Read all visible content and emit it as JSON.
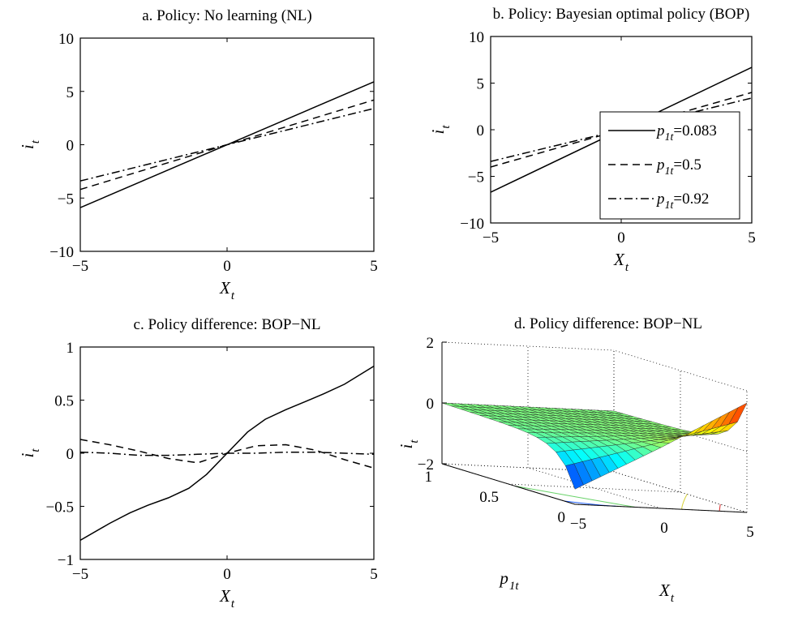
{
  "chart_data": [
    {
      "id": "a",
      "type": "line",
      "title": "a. Policy: No learning (NL)",
      "xlabel": "X",
      "xlabel_sub": "t",
      "ylabel": "i",
      "ylabel_sub": "t",
      "xlim": [
        -5,
        5
      ],
      "ylim": [
        -10,
        10
      ],
      "xticks": [
        -5,
        0,
        5
      ],
      "yticks": [
        -10,
        -5,
        0,
        5,
        10
      ],
      "series": [
        {
          "style": "solid",
          "x": [
            -5,
            5
          ],
          "y": [
            -5.9,
            5.9
          ]
        },
        {
          "style": "dashed",
          "x": [
            -5,
            5
          ],
          "y": [
            -4.2,
            4.2
          ]
        },
        {
          "style": "dashdot",
          "x": [
            -5,
            5
          ],
          "y": [
            -3.4,
            3.4
          ]
        }
      ]
    },
    {
      "id": "b",
      "type": "line",
      "title": "b. Policy: Bayesian optimal policy (BOP)",
      "xlabel": "X",
      "xlabel_sub": "t",
      "ylabel": "i",
      "ylabel_sub": "t",
      "xlim": [
        -5,
        5
      ],
      "ylim": [
        -10,
        10
      ],
      "xticks": [
        -5,
        0,
        5
      ],
      "yticks": [
        -10,
        -5,
        0,
        5,
        10
      ],
      "legend_position": "center-right",
      "series": [
        {
          "name": "p1t=0.083",
          "name_main": "p",
          "name_sub": "1t",
          "name_val": "=0.083",
          "style": "solid",
          "x": [
            -5,
            5
          ],
          "y": [
            -6.7,
            6.7
          ]
        },
        {
          "name": "p1t=0.5",
          "name_main": "p",
          "name_sub": "1t",
          "name_val": "=0.5",
          "style": "dashed",
          "x": [
            -5,
            5
          ],
          "y": [
            -4.0,
            4.0
          ]
        },
        {
          "name": "p1t=0.92",
          "name_main": "p",
          "name_sub": "1t",
          "name_val": "=0.92",
          "style": "dashdot",
          "x": [
            -5,
            5
          ],
          "y": [
            -3.4,
            3.4
          ]
        }
      ]
    },
    {
      "id": "c",
      "type": "line",
      "title": "c. Policy difference: BOP−NL",
      "xlabel": "X",
      "xlabel_sub": "t",
      "ylabel": "i",
      "ylabel_sub": "t",
      "xlim": [
        -5,
        5
      ],
      "ylim": [
        -1,
        1
      ],
      "xticks": [
        -5,
        0,
        5
      ],
      "yticks": [
        -1,
        -0.5,
        0,
        0.5,
        1
      ],
      "series": [
        {
          "style": "solid",
          "x": [
            -5,
            -4,
            -3.3,
            -2.7,
            -2,
            -1.3,
            -0.7,
            0,
            0.7,
            1.3,
            2,
            2.7,
            3.3,
            4,
            5
          ],
          "y": [
            -0.82,
            -0.66,
            -0.56,
            -0.49,
            -0.42,
            -0.33,
            -0.2,
            0,
            0.2,
            0.32,
            0.41,
            0.49,
            0.56,
            0.65,
            0.82
          ]
        },
        {
          "style": "dashed",
          "x": [
            -5,
            -4,
            -3,
            -2,
            -1,
            0,
            1,
            2,
            3,
            4,
            5
          ],
          "y": [
            0.13,
            0.08,
            0.02,
            -0.05,
            -0.09,
            0,
            0.07,
            0.08,
            0.03,
            -0.06,
            -0.14
          ]
        },
        {
          "style": "dashdot",
          "x": [
            -5,
            -4,
            -3,
            -2,
            -1,
            0,
            1,
            2,
            3,
            4,
            5
          ],
          "y": [
            0.01,
            0.0,
            -0.02,
            -0.02,
            -0.01,
            0,
            0,
            0.01,
            0.01,
            0,
            -0.01
          ]
        }
      ]
    },
    {
      "id": "d",
      "type": "surface",
      "title": "d. Policy difference: BOP−NL",
      "xlabel": "X",
      "xlabel_sub": "t",
      "ylabel": "p",
      "ylabel_sub": "1t",
      "zlabel": "i",
      "zlabel_sub": "t",
      "xlim": [
        -5,
        5
      ],
      "ylim": [
        0,
        1
      ],
      "zlim": [
        -2,
        2
      ],
      "xticks": [
        -5,
        0,
        5
      ],
      "yticks": [
        0,
        0.5,
        1
      ],
      "zticks": [
        -2,
        0,
        2
      ],
      "grid": true,
      "colormap": "jet",
      "surface_note": "z is largest positive near X=5, p=0, most negative near X=-5, p=0, near 0 as p approaches 1"
    }
  ]
}
